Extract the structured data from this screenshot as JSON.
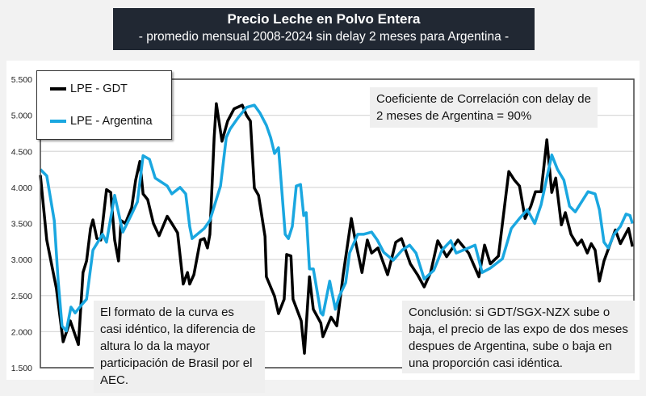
{
  "chart_data": {
    "type": "line",
    "title": "Precio Leche en Polvo Entera",
    "subtitle": "- promedio mensual 2008-2024 sin delay 2 meses para Argentina -",
    "xlabel": "",
    "ylabel": "",
    "xlim": [
      2008.0,
      2024.7
    ],
    "ylim": [
      1500,
      5500
    ],
    "yticks": [
      "1.500",
      "2.000",
      "2.500",
      "3.000",
      "3.500",
      "4.000",
      "4.500",
      "5.000",
      "5.500"
    ],
    "ytick_values": [
      1500,
      2000,
      2500,
      3000,
      3500,
      4000,
      4500,
      5000,
      5500
    ],
    "grid": "horizontal",
    "legend_position": "top-left",
    "series": [
      {
        "name": "LPE - GDT",
        "color": "#000000",
        "points": [
          [
            2008.0,
            4170
          ],
          [
            2008.18,
            3270
          ],
          [
            2008.45,
            2600
          ],
          [
            2008.64,
            1860
          ],
          [
            2008.84,
            2150
          ],
          [
            2009.07,
            1820
          ],
          [
            2009.2,
            2820
          ],
          [
            2009.3,
            2980
          ],
          [
            2009.41,
            3430
          ],
          [
            2009.48,
            3550
          ],
          [
            2009.59,
            3290
          ],
          [
            2009.7,
            3270
          ],
          [
            2009.86,
            3970
          ],
          [
            2009.98,
            3930
          ],
          [
            2010.09,
            3270
          ],
          [
            2010.2,
            2980
          ],
          [
            2010.27,
            3540
          ],
          [
            2010.39,
            3500
          ],
          [
            2010.57,
            3720
          ],
          [
            2010.68,
            4100
          ],
          [
            2010.8,
            4360
          ],
          [
            2010.89,
            3910
          ],
          [
            2011.02,
            3830
          ],
          [
            2011.18,
            3500
          ],
          [
            2011.34,
            3330
          ],
          [
            2011.57,
            3600
          ],
          [
            2011.7,
            3500
          ],
          [
            2011.86,
            3370
          ],
          [
            2012.02,
            2660
          ],
          [
            2012.14,
            2820
          ],
          [
            2012.2,
            2660
          ],
          [
            2012.32,
            2790
          ],
          [
            2012.5,
            3270
          ],
          [
            2012.61,
            3290
          ],
          [
            2012.7,
            3160
          ],
          [
            2012.77,
            3350
          ],
          [
            2012.89,
            4690
          ],
          [
            2012.95,
            5160
          ],
          [
            2013.11,
            4640
          ],
          [
            2013.27,
            4920
          ],
          [
            2013.45,
            5090
          ],
          [
            2013.68,
            5140
          ],
          [
            2013.8,
            5000
          ],
          [
            2013.91,
            4920
          ],
          [
            2014.02,
            3990
          ],
          [
            2014.14,
            3890
          ],
          [
            2014.32,
            3320
          ],
          [
            2014.36,
            2760
          ],
          [
            2014.59,
            2490
          ],
          [
            2014.7,
            2250
          ],
          [
            2014.86,
            2450
          ],
          [
            2014.93,
            3070
          ],
          [
            2015.05,
            3050
          ],
          [
            2015.11,
            2450
          ],
          [
            2015.34,
            2150
          ],
          [
            2015.43,
            1700
          ],
          [
            2015.57,
            2760
          ],
          [
            2015.68,
            2310
          ],
          [
            2015.89,
            2120
          ],
          [
            2015.95,
            1930
          ],
          [
            2016.18,
            2200
          ],
          [
            2016.34,
            2080
          ],
          [
            2016.52,
            2790
          ],
          [
            2016.75,
            3570
          ],
          [
            2016.86,
            3270
          ],
          [
            2017.05,
            2820
          ],
          [
            2017.2,
            3270
          ],
          [
            2017.32,
            3090
          ],
          [
            2017.5,
            3160
          ],
          [
            2017.77,
            2790
          ],
          [
            2018.0,
            3240
          ],
          [
            2018.16,
            3290
          ],
          [
            2018.41,
            2940
          ],
          [
            2018.61,
            2790
          ],
          [
            2018.8,
            2620
          ],
          [
            2018.98,
            2820
          ],
          [
            2019.18,
            3260
          ],
          [
            2019.43,
            3040
          ],
          [
            2019.75,
            3270
          ],
          [
            2020.05,
            3090
          ],
          [
            2020.34,
            2760
          ],
          [
            2020.5,
            3200
          ],
          [
            2020.66,
            2940
          ],
          [
            2020.89,
            3050
          ],
          [
            2021.18,
            4220
          ],
          [
            2021.34,
            4100
          ],
          [
            2021.48,
            4020
          ],
          [
            2021.64,
            3570
          ],
          [
            2021.8,
            3740
          ],
          [
            2021.93,
            3940
          ],
          [
            2022.09,
            3940
          ],
          [
            2022.25,
            4660
          ],
          [
            2022.39,
            3930
          ],
          [
            2022.5,
            4130
          ],
          [
            2022.66,
            3480
          ],
          [
            2022.77,
            3650
          ],
          [
            2022.93,
            3350
          ],
          [
            2023.11,
            3200
          ],
          [
            2023.23,
            3270
          ],
          [
            2023.39,
            3090
          ],
          [
            2023.5,
            3220
          ],
          [
            2023.61,
            3130
          ],
          [
            2023.73,
            2700
          ],
          [
            2023.86,
            2980
          ],
          [
            2024.02,
            3200
          ],
          [
            2024.18,
            3410
          ],
          [
            2024.32,
            3220
          ],
          [
            2024.55,
            3430
          ],
          [
            2024.66,
            3180
          ]
        ]
      },
      {
        "name": "LPE - Argentina",
        "color": "#1aa7e0",
        "points": [
          [
            2008.0,
            4250
          ],
          [
            2008.18,
            4160
          ],
          [
            2008.39,
            3540
          ],
          [
            2008.5,
            2710
          ],
          [
            2008.61,
            2080
          ],
          [
            2008.73,
            2010
          ],
          [
            2008.86,
            2340
          ],
          [
            2008.98,
            2260
          ],
          [
            2009.14,
            2360
          ],
          [
            2009.3,
            2450
          ],
          [
            2009.48,
            3130
          ],
          [
            2009.75,
            3350
          ],
          [
            2009.86,
            3240
          ],
          [
            2010.09,
            3890
          ],
          [
            2010.32,
            3380
          ],
          [
            2010.57,
            3630
          ],
          [
            2010.73,
            3800
          ],
          [
            2010.89,
            4440
          ],
          [
            2011.07,
            4390
          ],
          [
            2011.23,
            4130
          ],
          [
            2011.57,
            4020
          ],
          [
            2011.7,
            3910
          ],
          [
            2011.93,
            4000
          ],
          [
            2012.09,
            3910
          ],
          [
            2012.2,
            3460
          ],
          [
            2012.27,
            3290
          ],
          [
            2012.61,
            3430
          ],
          [
            2012.77,
            3540
          ],
          [
            2012.93,
            3800
          ],
          [
            2013.07,
            4020
          ],
          [
            2013.23,
            4690
          ],
          [
            2013.34,
            4810
          ],
          [
            2013.57,
            4970
          ],
          [
            2013.8,
            5110
          ],
          [
            2014.02,
            5140
          ],
          [
            2014.18,
            5030
          ],
          [
            2014.36,
            4860
          ],
          [
            2014.48,
            4690
          ],
          [
            2014.59,
            4470
          ],
          [
            2014.7,
            4550
          ],
          [
            2014.89,
            3350
          ],
          [
            2014.98,
            3290
          ],
          [
            2015.09,
            3460
          ],
          [
            2015.2,
            4020
          ],
          [
            2015.32,
            4040
          ],
          [
            2015.41,
            3610
          ],
          [
            2015.48,
            3650
          ],
          [
            2015.57,
            2870
          ],
          [
            2015.68,
            2870
          ],
          [
            2015.89,
            2260
          ],
          [
            2015.95,
            2230
          ],
          [
            2016.14,
            2700
          ],
          [
            2016.3,
            2310
          ],
          [
            2016.41,
            2490
          ],
          [
            2016.59,
            2680
          ],
          [
            2016.7,
            3090
          ],
          [
            2016.93,
            3350
          ],
          [
            2017.09,
            3350
          ],
          [
            2017.32,
            3380
          ],
          [
            2017.48,
            3270
          ],
          [
            2017.66,
            3100
          ],
          [
            2017.93,
            2990
          ],
          [
            2018.18,
            3130
          ],
          [
            2018.39,
            3200
          ],
          [
            2018.57,
            3090
          ],
          [
            2018.8,
            2730
          ],
          [
            2019.07,
            2850
          ],
          [
            2019.3,
            3130
          ],
          [
            2019.55,
            3260
          ],
          [
            2019.7,
            3090
          ],
          [
            2020.05,
            3160
          ],
          [
            2020.23,
            3200
          ],
          [
            2020.43,
            2820
          ],
          [
            2020.66,
            2880
          ],
          [
            2021.0,
            3010
          ],
          [
            2021.25,
            3430
          ],
          [
            2021.48,
            3570
          ],
          [
            2021.7,
            3690
          ],
          [
            2021.91,
            3500
          ],
          [
            2022.09,
            3760
          ],
          [
            2022.39,
            4450
          ],
          [
            2022.55,
            4250
          ],
          [
            2022.73,
            4100
          ],
          [
            2022.89,
            3740
          ],
          [
            2023.05,
            3660
          ],
          [
            2023.23,
            3800
          ],
          [
            2023.41,
            3940
          ],
          [
            2023.61,
            3910
          ],
          [
            2023.73,
            3690
          ],
          [
            2023.86,
            3240
          ],
          [
            2023.98,
            3160
          ],
          [
            2024.14,
            3350
          ],
          [
            2024.32,
            3460
          ],
          [
            2024.48,
            3630
          ],
          [
            2024.59,
            3610
          ],
          [
            2024.66,
            3500
          ]
        ]
      }
    ],
    "annotations": {
      "correlation": "Coeficiente de Correlación con delay de 2 meses de Argentina = 90%",
      "left_note": "El formato de la curva es casi idéntico, la diferencia de altura lo da la mayor participación de Brasil por el AEC.",
      "right_note": "Conclusión: si GDT/SGX-NZX sube o baja, el precio de las expo de dos meses despues de Argentina, sube o baja en una proporción casi idéntica."
    }
  }
}
